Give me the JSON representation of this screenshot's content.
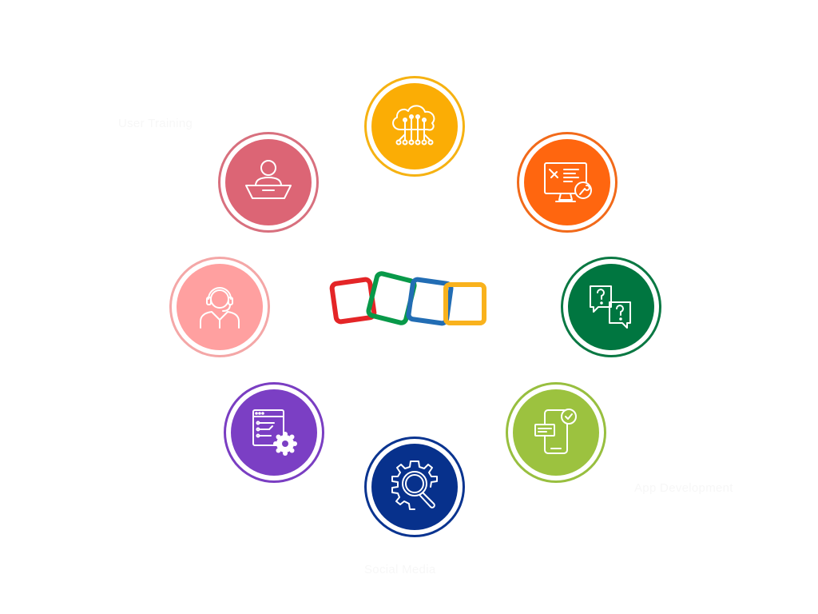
{
  "nodes": [
    {
      "id": "cloud",
      "icon": "cloud-network-icon",
      "color": "#FBAD05",
      "ring": "#F6B212"
    },
    {
      "id": "dev",
      "icon": "monitor-tools-icon",
      "color": "#FF660F",
      "ring": "#F26A1A"
    },
    {
      "id": "qa",
      "icon": "question-chat-icon",
      "color": "#007640",
      "ring": "#0A7843"
    },
    {
      "id": "mobile",
      "icon": "mobile-check-icon",
      "color": "#9CC23F",
      "ring": "#98BF3F"
    },
    {
      "id": "search",
      "icon": "gear-search-icon",
      "color": "#07318C",
      "ring": "#0A3490"
    },
    {
      "id": "config",
      "icon": "browser-gear-icon",
      "color": "#7B3FC4",
      "ring": "#7A3EC2"
    },
    {
      "id": "support",
      "icon": "headset-agent-icon",
      "color": "#FFA0A0",
      "ring": "#F4A7A7"
    },
    {
      "id": "laptop",
      "icon": "laptop-user-icon",
      "color": "#DC6575",
      "ring": "#D8707E"
    }
  ],
  "labels": {
    "top_left": "User Training",
    "bottom_right": "App Development",
    "bottom": "Social Media"
  },
  "logo": {
    "name": "zoho-squares-logo",
    "colors": [
      "#E42527",
      "#089949",
      "#226DB4",
      "#F9B21D"
    ]
  }
}
